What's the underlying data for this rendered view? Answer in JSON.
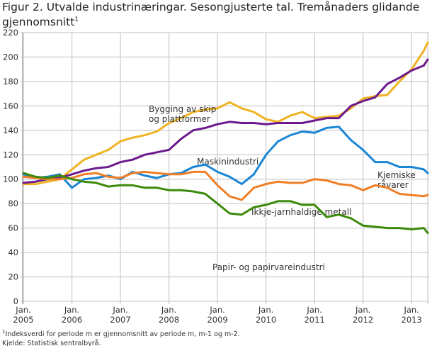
{
  "title": "Figur 2. Utvalde industrinæringar. Sesongjusterte tal. Tremånaders glidande gjennomsnitt",
  "title_footnote_mark": "1",
  "footnote_mark": "1",
  "footnote": "Indeksverdi for periode m er gjennomsnitt av periode m, m-1 og m-2.",
  "source": "Kjelde: Statistisk sentralbyrå.",
  "chart_data": {
    "type": "line",
    "title": "Figur 2. Utvalde industrinæringar. Sesongjusterte tal. Tremånaders glidande gjennomsnitt",
    "xlabel": "",
    "ylabel": "",
    "ylim": [
      0,
      220
    ],
    "yticks": [
      "0",
      "20",
      "40",
      "60",
      "80",
      "100",
      "120",
      "140",
      "160",
      "180",
      "200",
      "220"
    ],
    "xticks": [
      {
        "date": "2005-01",
        "label1": "Jan.",
        "label2": "2005"
      },
      {
        "date": "2006-01",
        "label1": "Jan.",
        "label2": "2006"
      },
      {
        "date": "2007-01",
        "label1": "Jan.",
        "label2": "2007"
      },
      {
        "date": "2008-01",
        "label1": "Jan.",
        "label2": "2008"
      },
      {
        "date": "2009-01",
        "label1": "Jan.",
        "label2": "2009"
      },
      {
        "date": "2010-01",
        "label1": "Jan.",
        "label2": "2010"
      },
      {
        "date": "2011-01",
        "label1": "Jan.",
        "label2": "2011"
      },
      {
        "date": "2012-01",
        "label1": "Jan.",
        "label2": "2012"
      },
      {
        "date": "2013-01",
        "label1": "Jan.",
        "label2": "2013"
      }
    ],
    "grid": true,
    "legend": "inline labels",
    "x": [
      "2005-01",
      "2005-04",
      "2005-07",
      "2005-10",
      "2006-01",
      "2006-04",
      "2006-07",
      "2006-10",
      "2007-01",
      "2007-04",
      "2007-07",
      "2007-10",
      "2008-01",
      "2008-04",
      "2008-07",
      "2008-10",
      "2009-01",
      "2009-04",
      "2009-07",
      "2009-10",
      "2010-01",
      "2010-04",
      "2010-07",
      "2010-10",
      "2011-01",
      "2011-04",
      "2011-07",
      "2011-10",
      "2012-01",
      "2012-04",
      "2012-07",
      "2012-10",
      "2013-01",
      "2013-04",
      "2013-05"
    ],
    "series": [
      {
        "name": "Bygging av skip og plattformer",
        "label_lines": [
          "Bygging av skip",
          "og plattformer"
        ],
        "color": "#f0b323",
        "values": [
          96,
          96,
          98,
          100,
          108,
          116,
          120,
          124,
          131,
          134,
          136,
          139,
          146,
          150,
          155,
          157,
          158,
          163,
          158,
          155,
          149,
          147,
          152,
          155,
          150,
          151,
          152,
          158,
          166,
          168,
          169,
          180,
          190,
          205,
          212
        ]
      },
      {
        "name": "Maskinindustri",
        "label_lines": [
          "Maskinindustri"
        ],
        "color": "#6c1a8c",
        "values": [
          97,
          98,
          100,
          101,
          104,
          107,
          109,
          110,
          114,
          116,
          120,
          122,
          124,
          133,
          140,
          142,
          145,
          147,
          146,
          146,
          145,
          146,
          146,
          146,
          148,
          150,
          150,
          160,
          164,
          167,
          178,
          183,
          189,
          193,
          198
        ]
      },
      {
        "name": "Kjemiske råvarer",
        "label_lines": [
          "Kjemiske",
          "råvarer"
        ],
        "color": "#1a86d6",
        "values": [
          104,
          101,
          102,
          104,
          93,
          100,
          101,
          103,
          100,
          106,
          103,
          101,
          104,
          105,
          110,
          112,
          106,
          102,
          96,
          104,
          120,
          131,
          136,
          139,
          138,
          142,
          143,
          132,
          124,
          114,
          114,
          110,
          110,
          108,
          105
        ]
      },
      {
        "name": "Ikkje-jarnhaldige metall",
        "label_lines": [
          "Ikkje-jarnhaldige metall"
        ],
        "color": "#f07e26",
        "values": [
          102,
          101,
          100,
          100,
          101,
          104,
          105,
          102,
          101,
          105,
          106,
          105,
          104,
          104,
          106,
          106,
          95,
          86,
          83,
          93,
          96,
          98,
          97,
          97,
          100,
          99,
          96,
          95,
          91,
          95,
          93,
          88,
          87,
          86,
          87
        ]
      },
      {
        "name": "Papir- og papirvareindustri",
        "label_lines": [
          "Papir- og papirvareindustri"
        ],
        "color": "#3d8a0b",
        "values": [
          105,
          102,
          101,
          103,
          100,
          98,
          97,
          94,
          95,
          95,
          93,
          93,
          91,
          91,
          90,
          88,
          80,
          72,
          71,
          77,
          79,
          82,
          82,
          79,
          79,
          69,
          71,
          68,
          62,
          61,
          60,
          60,
          59,
          60,
          56
        ]
      }
    ]
  }
}
